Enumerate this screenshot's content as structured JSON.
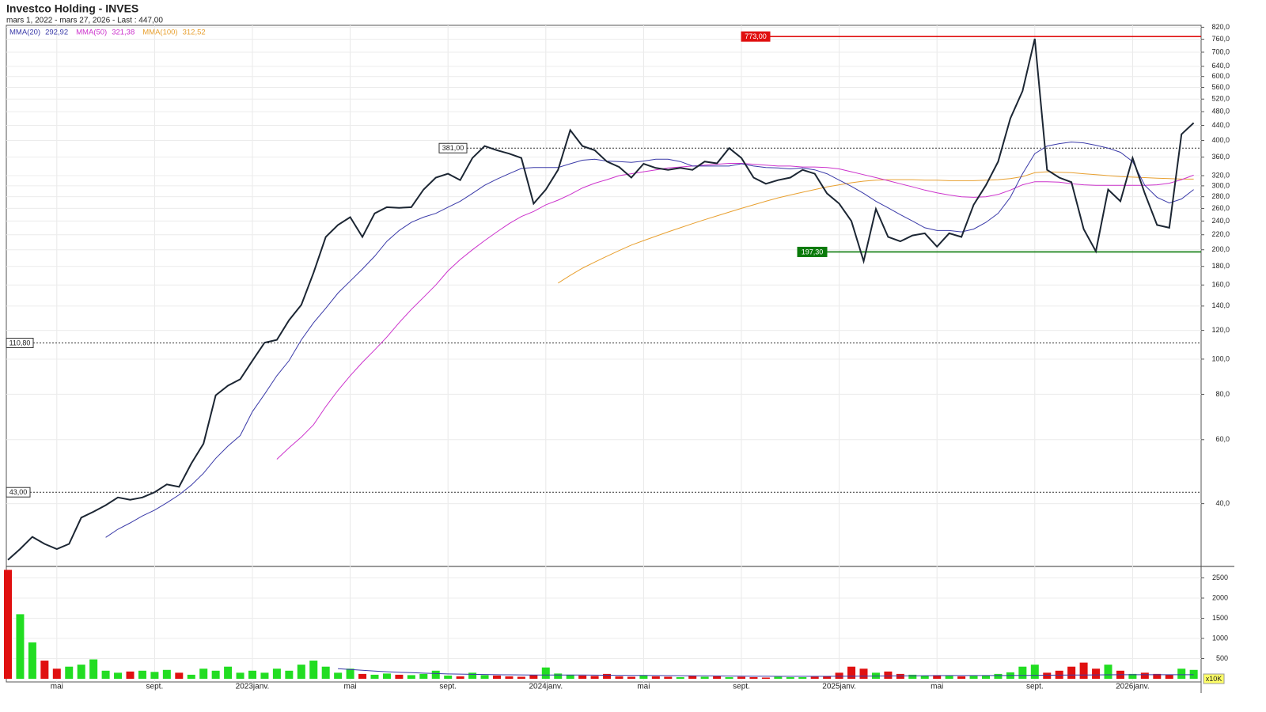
{
  "chart_data": [
    {
      "type": "line",
      "title": "Investco Holding - INVES",
      "subtitle": "mars 1, 2022 - mars 27, 2026 - Last : 447,00",
      "log_scale": true,
      "grid": true,
      "ylim": [
        27,
        830
      ],
      "yticks": [
        {
          "value": 820,
          "label": "820,0"
        },
        {
          "value": 760,
          "label": "760,0"
        },
        {
          "value": 700,
          "label": "700,0"
        },
        {
          "value": 640,
          "label": "640,0"
        },
        {
          "value": 600,
          "label": "600,0"
        },
        {
          "value": 560,
          "label": "560,0"
        },
        {
          "value": 520,
          "label": "520,0"
        },
        {
          "value": 480,
          "label": "480,0"
        },
        {
          "value": 440,
          "label": "440,0"
        },
        {
          "value": 400,
          "label": "400,0"
        },
        {
          "value": 360,
          "label": "360,0"
        },
        {
          "value": 320,
          "label": "320,0"
        },
        {
          "value": 300,
          "label": "300,0"
        },
        {
          "value": 280,
          "label": "280,0"
        },
        {
          "value": 260,
          "label": "260,0"
        },
        {
          "value": 240,
          "label": "240,0"
        },
        {
          "value": 220,
          "label": "220,0"
        },
        {
          "value": 200,
          "label": "200,0"
        },
        {
          "value": 180,
          "label": "180,0"
        },
        {
          "value": 160,
          "label": "160,0"
        },
        {
          "value": 140,
          "label": "140,0"
        },
        {
          "value": 120,
          "label": "120,0"
        },
        {
          "value": 100,
          "label": "100,0"
        },
        {
          "value": 80,
          "label": "80,0"
        },
        {
          "value": 60,
          "label": "60,0"
        },
        {
          "value": 40,
          "label": "40,0"
        }
      ],
      "levels": [
        {
          "value": 773,
          "label": "773,00",
          "color": "#e01010",
          "style": "solid"
        },
        {
          "value": 381,
          "label": "381,00",
          "color": "#333333",
          "style": "dotted"
        },
        {
          "value": 110.8,
          "label": "110,80",
          "color": "#333333",
          "style": "dotted"
        },
        {
          "value": 43,
          "label": "43,00",
          "color": "#333333",
          "style": "dotted"
        },
        {
          "value": 197.3,
          "label": "197,30",
          "color": "#0a7a0a",
          "style": "solid"
        }
      ],
      "series": [
        {
          "color": "#1c2633",
          "values": [
            28,
            30,
            32.4,
            31,
            30,
            31,
            36.6,
            38,
            39.6,
            41.6,
            41,
            41.6,
            43,
            45.2,
            44.5,
            51.6,
            58.5,
            79.5,
            84.5,
            88,
            99,
            111,
            113,
            128,
            141,
            173,
            217,
            234,
            246,
            217,
            252,
            262,
            261,
            262,
            293,
            316,
            324,
            311,
            358,
            386,
            376,
            368,
            358,
            268,
            293,
            332,
            427,
            386,
            376,
            350,
            338,
            316,
            345,
            336,
            332,
            336,
            332,
            350,
            346,
            381,
            358,
            316,
            304,
            311,
            316,
            332,
            324,
            286,
            268,
            240,
            186,
            259,
            217,
            211,
            219,
            222,
            204,
            222,
            217,
            266,
            301,
            350,
            460,
            547,
            762,
            332,
            316,
            307,
            228,
            198,
            293,
            272,
            358,
            286,
            234,
            230,
            416,
            447
          ]
        },
        {
          "name": "MMA(20)",
          "legend_value": "292,92",
          "color": "#3a3aa8",
          "values": [
            null,
            null,
            null,
            null,
            null,
            null,
            null,
            null,
            32.3,
            34,
            35.4,
            37,
            38.4,
            40.2,
            42.3,
            45,
            48.5,
            53.3,
            57.6,
            61.6,
            71.7,
            80.1,
            90,
            99,
            113,
            126,
            138,
            152,
            164,
            177,
            192,
            211,
            226,
            238,
            246,
            252,
            262,
            272,
            286,
            301,
            313,
            324,
            335,
            337,
            337,
            337,
            345,
            353,
            355,
            351,
            350,
            348,
            351,
            355,
            355,
            350,
            340,
            340,
            340,
            340,
            345,
            340,
            337,
            336,
            334,
            336,
            332,
            324,
            311,
            299,
            286,
            272,
            261,
            250,
            240,
            230,
            226,
            226,
            224,
            228,
            238,
            252,
            279,
            324,
            368,
            386,
            392,
            396,
            394,
            388,
            381,
            371,
            350,
            301,
            279,
            269,
            276,
            293
          ]
        },
        {
          "name": "MMA(50)",
          "legend_value": "321,38",
          "color": "#cc33cc",
          "values": [
            null,
            null,
            null,
            null,
            null,
            null,
            null,
            null,
            null,
            null,
            null,
            null,
            null,
            null,
            null,
            null,
            null,
            null,
            null,
            null,
            null,
            null,
            53,
            57,
            61,
            66,
            74,
            82,
            90,
            98,
            106,
            115,
            126,
            137,
            148,
            160,
            175,
            188,
            200,
            212,
            224,
            236,
            247,
            255,
            266,
            274,
            284,
            296,
            305,
            312,
            320,
            324,
            328,
            332,
            336,
            338,
            340,
            342,
            344,
            346,
            346,
            344,
            342,
            340,
            340,
            338,
            338,
            337,
            334,
            328,
            322,
            316,
            310,
            304,
            298,
            292,
            287,
            283,
            280,
            279,
            280,
            284,
            292,
            302,
            308,
            308,
            307,
            304,
            302,
            301,
            301,
            301,
            301,
            301,
            302,
            305,
            312,
            321
          ]
        },
        {
          "name": "MMA(100)",
          "legend_value": "312,52",
          "color": "#e8a030",
          "values": [
            null,
            null,
            null,
            null,
            null,
            null,
            null,
            null,
            null,
            null,
            null,
            null,
            null,
            null,
            null,
            null,
            null,
            null,
            null,
            null,
            null,
            null,
            null,
            null,
            null,
            null,
            null,
            null,
            null,
            null,
            null,
            null,
            null,
            null,
            null,
            null,
            null,
            null,
            null,
            null,
            null,
            null,
            null,
            null,
            null,
            162,
            170,
            178,
            185,
            192,
            199,
            206,
            212,
            218,
            224,
            230,
            236,
            242,
            248,
            254,
            260,
            266,
            272,
            278,
            283,
            288,
            293,
            298,
            302,
            306,
            309,
            311,
            312,
            312,
            312,
            311,
            311,
            310,
            310,
            310,
            311,
            312,
            314,
            318,
            326,
            328,
            327,
            326,
            324,
            322,
            320,
            318,
            317,
            316,
            315,
            314,
            313,
            313
          ]
        }
      ]
    },
    {
      "type": "bar",
      "unit_label": "x10K",
      "grid": true,
      "categories": [
        null,
        null,
        null,
        null,
        "mai",
        null,
        null,
        null,
        null,
        null,
        null,
        null,
        "sept.",
        null,
        null,
        null,
        null,
        null,
        null,
        null,
        "2023janv.",
        null,
        null,
        null,
        null,
        null,
        null,
        null,
        "mai",
        null,
        null,
        null,
        null,
        null,
        null,
        null,
        "sept.",
        null,
        null,
        null,
        null,
        null,
        null,
        null,
        "2024janv.",
        null,
        null,
        null,
        null,
        null,
        null,
        null,
        "mai",
        null,
        null,
        null,
        null,
        null,
        null,
        null,
        "sept.",
        null,
        null,
        null,
        null,
        null,
        null,
        null,
        "2025janv.",
        null,
        null,
        null,
        null,
        null,
        null,
        null,
        "mai",
        null,
        null,
        null,
        null,
        null,
        null,
        null,
        "sept.",
        null,
        null,
        null,
        null,
        null,
        null,
        null,
        "2026janv.",
        null,
        null,
        null,
        null,
        null
      ],
      "ylim": [
        0,
        2745
      ],
      "yticks": [
        500,
        1000,
        1500,
        2000,
        2500
      ],
      "up_color": "#22dd22",
      "down_color": "#e01010",
      "values": [
        2700,
        1600,
        900,
        450,
        250,
        300,
        350,
        480,
        200,
        150,
        180,
        200,
        170,
        220,
        150,
        100,
        250,
        200,
        300,
        150,
        200,
        150,
        250,
        200,
        350,
        450,
        300,
        150,
        250,
        120,
        100,
        130,
        100,
        90,
        120,
        200,
        80,
        60,
        150,
        90,
        80,
        60,
        50,
        90,
        280,
        130,
        100,
        80,
        70,
        120,
        60,
        50,
        90,
        60,
        50,
        40,
        70,
        50,
        60,
        40,
        50,
        40,
        30,
        50,
        40,
        40,
        50,
        60,
        150,
        300,
        250,
        150,
        180,
        120,
        100,
        80,
        90,
        70,
        60,
        70,
        80,
        120,
        160,
        300,
        350,
        150,
        200,
        300,
        400,
        250,
        350,
        200,
        120,
        150,
        120,
        100,
        250,
        220
      ],
      "ma_color": "#3a3aa8",
      "ma_values": [
        null,
        null,
        null,
        null,
        null,
        null,
        null,
        null,
        null,
        null,
        null,
        null,
        null,
        null,
        null,
        null,
        null,
        null,
        null,
        null,
        null,
        null,
        null,
        null,
        null,
        null,
        null,
        250,
        230,
        210,
        190,
        175,
        160,
        150,
        140,
        130,
        120,
        115,
        110,
        105,
        100,
        98,
        96,
        95,
        95,
        95,
        94,
        92,
        90,
        88,
        86,
        84,
        82,
        80,
        78,
        76,
        74,
        72,
        70,
        68,
        66,
        64,
        62,
        60,
        60,
        60,
        60,
        60,
        62,
        64,
        66,
        68,
        70,
        72,
        74,
        76,
        78,
        80,
        80,
        80,
        80,
        80,
        82,
        84,
        86,
        88,
        90,
        92,
        94,
        96,
        98,
        100,
        100,
        100,
        100,
        100,
        100,
        100
      ]
    }
  ]
}
